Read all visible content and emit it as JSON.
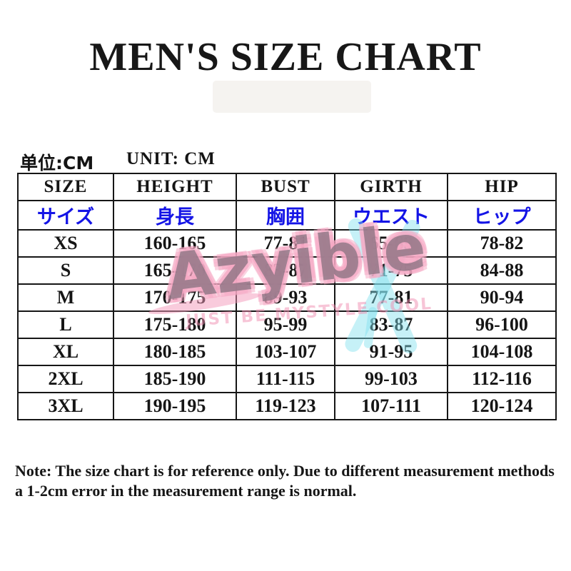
{
  "page": {
    "title": "MEN'S SIZE CHART"
  },
  "units": {
    "cn": "单位:CM",
    "en": "UNIT: CM"
  },
  "table": {
    "headers_en": [
      "SIZE",
      "HEIGHT",
      "BUST",
      "GIRTH",
      "HIP"
    ],
    "headers_jp": [
      "サイズ",
      "身長",
      "胸囲",
      "ウエスト",
      "ヒップ"
    ],
    "rows": [
      [
        "XS",
        "160-165",
        "77-81",
        "65-69",
        "78-82"
      ],
      [
        "S",
        "165-170",
        "83-87",
        "71-75",
        "84-88"
      ],
      [
        "M",
        "170-175",
        "89-93",
        "77-81",
        "90-94"
      ],
      [
        "L",
        "175-180",
        "95-99",
        "83-87",
        "96-100"
      ],
      [
        "XL",
        "180-185",
        "103-107",
        "91-95",
        "104-108"
      ],
      [
        "2XL",
        "185-190",
        "111-115",
        "99-103",
        "112-116"
      ],
      [
        "3XL",
        "190-195",
        "119-123",
        "107-111",
        "120-124"
      ]
    ]
  },
  "watermark": {
    "brand": "Azyible",
    "tagline": "JUST BE MYSTYLE COOL"
  },
  "note": {
    "line1": "Note: The size chart is for reference only. Due to different measurement methods",
    "line2": "a 1-2cm error in the measurement range is normal."
  },
  "colors": {
    "jp_header_blue": "#1414e6",
    "watermark_pink": "#f298b8",
    "watermark_cyan": "#80e0ee",
    "table_border": "#161616",
    "text_black": "#151515"
  }
}
